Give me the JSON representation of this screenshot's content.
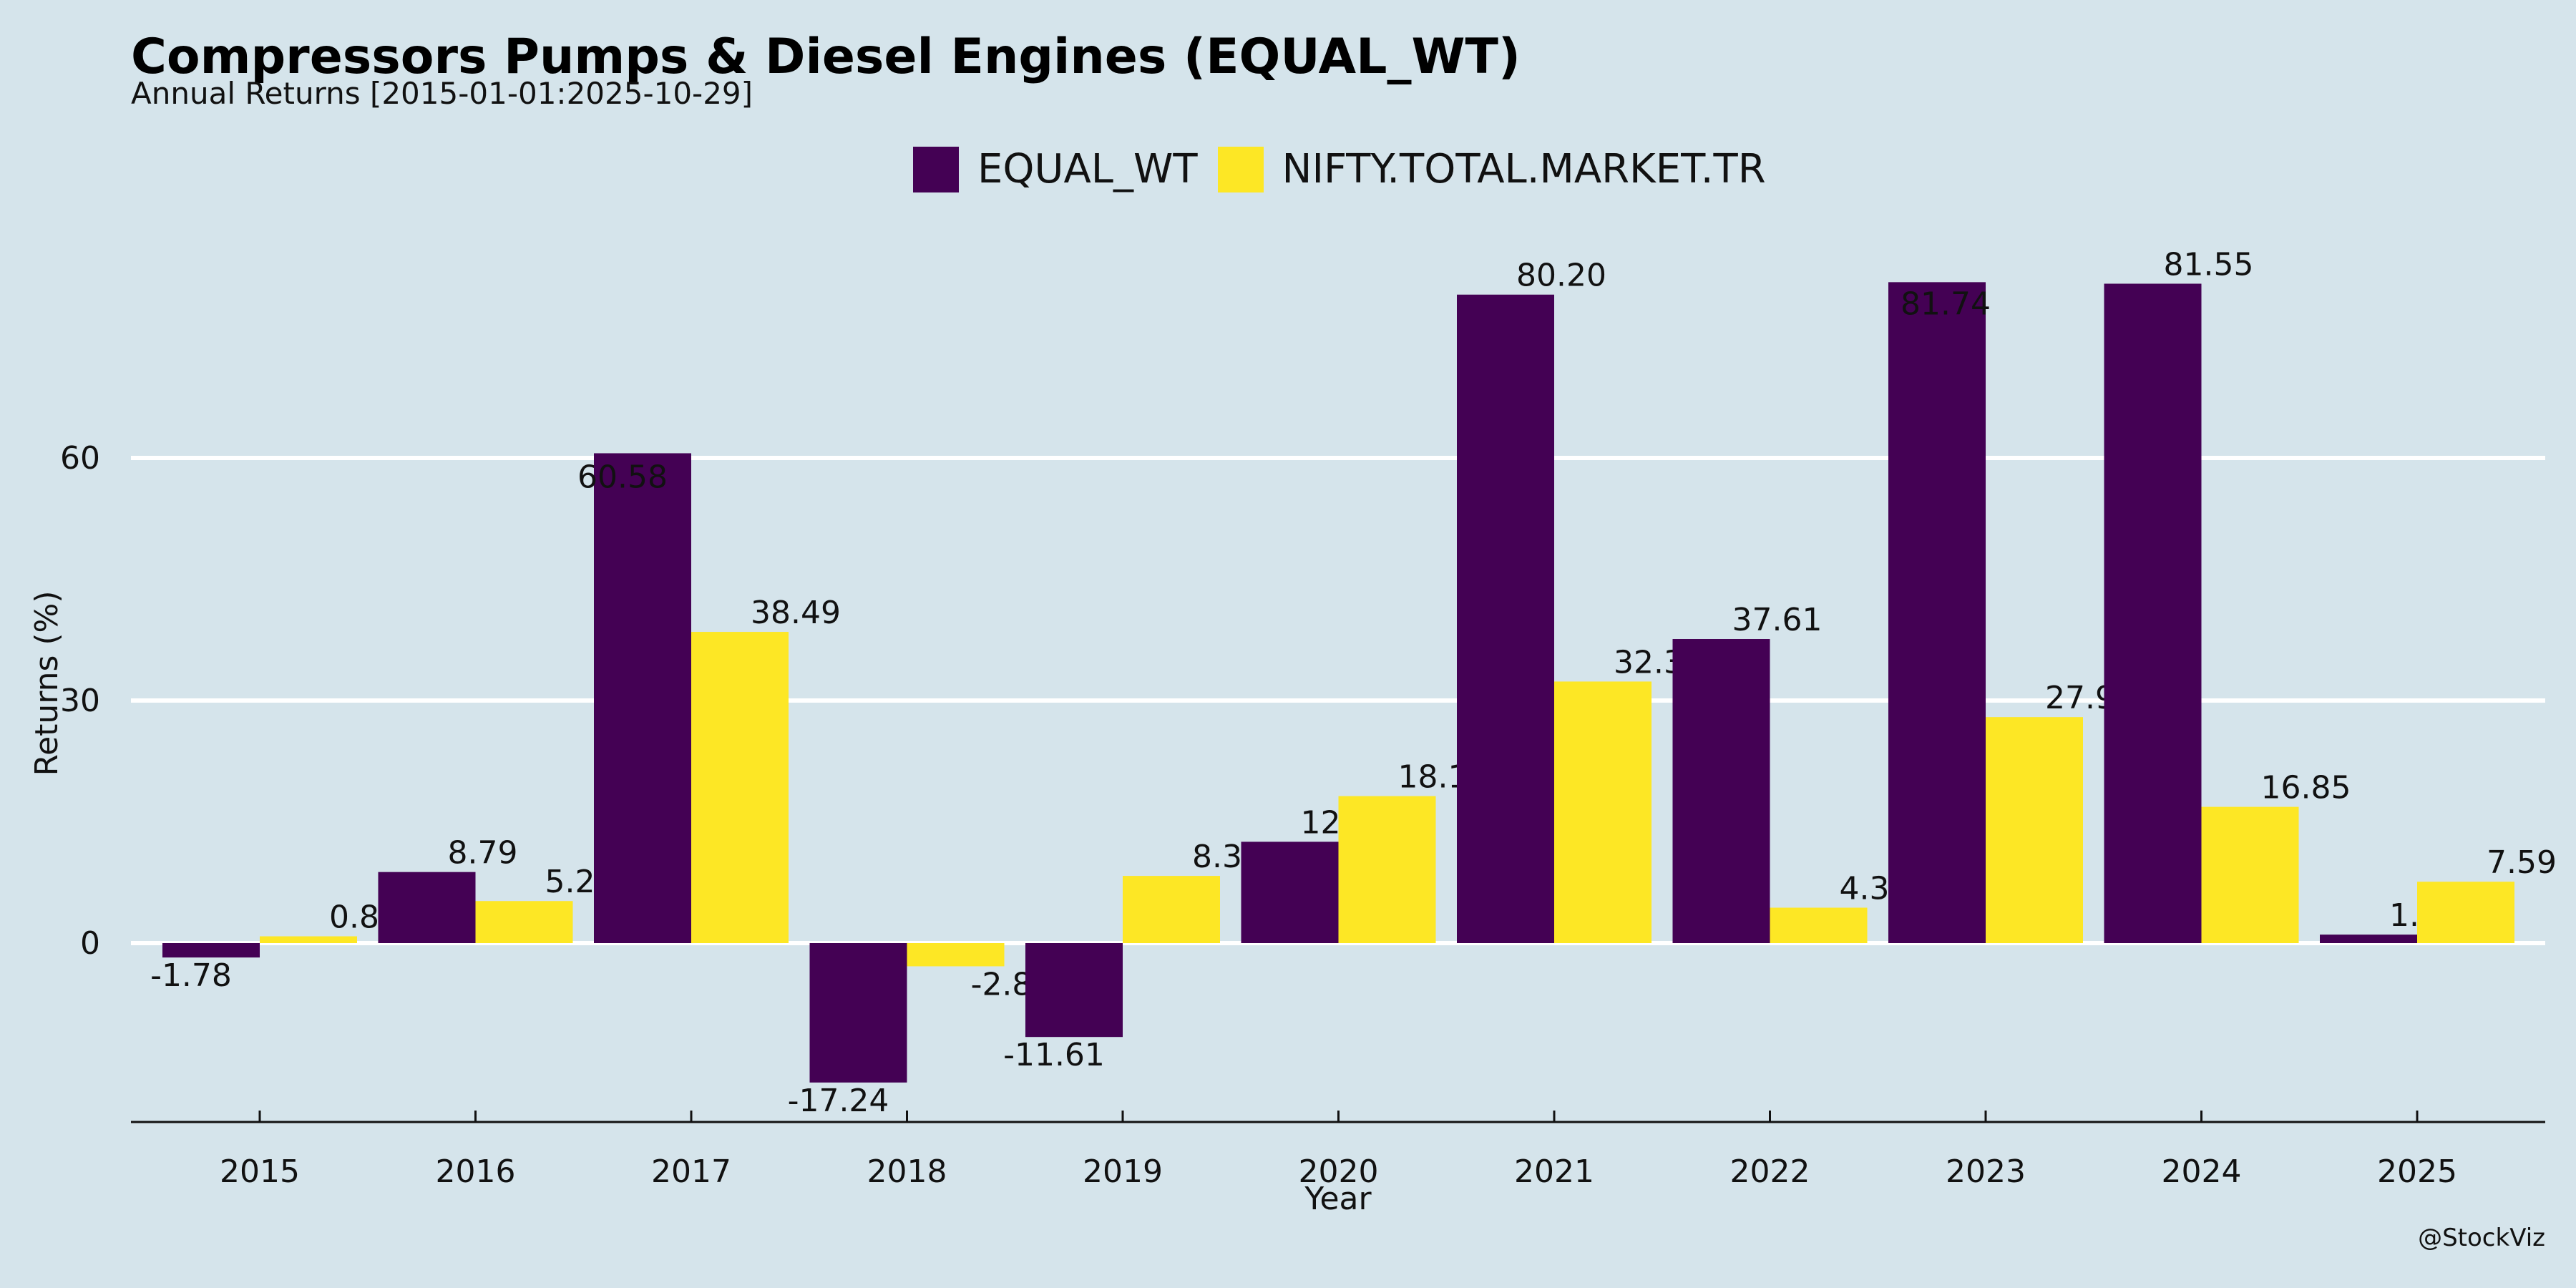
{
  "chart_data": {
    "type": "bar",
    "title": "Compressors Pumps & Diesel Engines (EQUAL_WT)",
    "subtitle": "Annual Returns [2015-01-01:2025-10-29]",
    "xlabel": "Year",
    "ylabel": "Returns (%)",
    "categories": [
      "2015",
      "2016",
      "2017",
      "2018",
      "2019",
      "2020",
      "2021",
      "2022",
      "2023",
      "2024",
      "2025"
    ],
    "series": [
      {
        "name": "EQUAL_WT",
        "color": "#440154",
        "values": [
          -1.78,
          8.79,
          60.58,
          -17.24,
          -11.61,
          12.53,
          80.2,
          37.61,
          81.74,
          81.55,
          1.05
        ]
      },
      {
        "name": "NIFTY.TOTAL.MARKET.TR",
        "color": "#fde725",
        "values": [
          0.84,
          5.2,
          38.49,
          -2.87,
          8.31,
          18.18,
          32.35,
          4.38,
          27.95,
          16.85,
          7.59
        ]
      }
    ],
    "ylim": [
      -22.3,
      92.0
    ],
    "yticks": [
      0,
      30,
      60
    ],
    "grid": true,
    "legend": "top-center"
  },
  "watermark": "@StockViz"
}
